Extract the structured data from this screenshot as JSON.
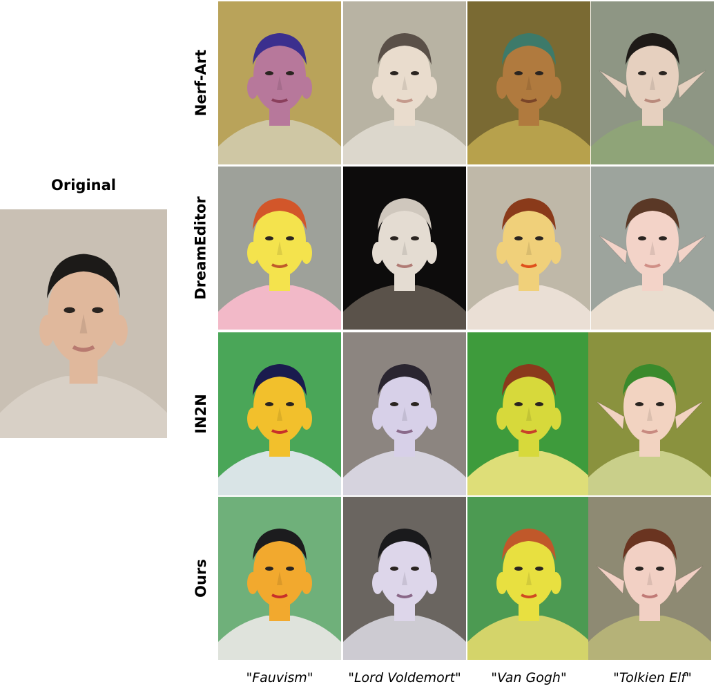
{
  "original_title": "Original",
  "row_labels": [
    "Nerf-Art",
    "DreamEditor",
    "IN2N",
    "Ours"
  ],
  "captions": [
    "\"Fauvism\"",
    "\"Lord Voldemort\"",
    "\"Van Gogh\"",
    "\"Tolkien Elf\""
  ],
  "palette": {
    "original": {
      "bg": "#c9c0b4",
      "skin": "#e0b89c",
      "hair": "#1c1a18",
      "shirt": "#d8d0c6",
      "lip": "#b87a70"
    },
    "nerfart": [
      {
        "bg": "#b9a35a",
        "skin": "#b7789b",
        "hair": "#3b2f8e",
        "shirt": "#cfc7a4",
        "lip": "#8a3f5c"
      },
      {
        "bg": "#b8b3a3",
        "skin": "#e9dccd",
        "hair": "#5a5048",
        "shirt": "#dcd7cc",
        "lip": "#c49a8c"
      },
      {
        "bg": "#7a6a33",
        "skin": "#b07a3e",
        "hair": "#3d7a6a",
        "shirt": "#b7a14c",
        "lip": "#7a4528"
      },
      {
        "bg": "#8e9684",
        "skin": "#e6d0bf",
        "hair": "#1e1a17",
        "shirt": "#8fa478",
        "lip": "#b98a7c"
      }
    ],
    "dreameditor": [
      {
        "bg": "#9ea19a",
        "skin": "#f4e34d",
        "hair": "#d2562a",
        "shirt": "#f2b9c8",
        "lip": "#c05a2a"
      },
      {
        "bg": "#0d0c0c",
        "skin": "#e4dcd2",
        "hair": "#cfc7bd",
        "shirt": "#5a524a",
        "lip": "#b07b74"
      },
      {
        "bg": "#bfb8a8",
        "skin": "#f0d07a",
        "hair": "#8a3a1a",
        "shirt": "#eadfd5",
        "lip": "#e0501c"
      },
      {
        "bg": "#9da49d",
        "skin": "#f3d3c8",
        "hair": "#5a3826",
        "shirt": "#e9ddcf",
        "lip": "#d08f86"
      }
    ],
    "in2n": [
      {
        "bg": "#4aa658",
        "skin": "#f2c02c",
        "hair": "#1a1b4e",
        "shirt": "#d9e4e6",
        "lip": "#c8302a"
      },
      {
        "bg": "#8c8580",
        "skin": "#d7d0e8",
        "hair": "#2a2530",
        "shirt": "#d6d3de",
        "lip": "#8a6a8a"
      },
      {
        "bg": "#3e9b3c",
        "skin": "#d7d93b",
        "hair": "#8a3a1c",
        "shirt": "#dede78",
        "lip": "#c8402a"
      },
      {
        "bg": "#8a923e",
        "skin": "#f2d3c1",
        "hair": "#3a8a2c",
        "shirt": "#c9cf8a",
        "lip": "#c88a80"
      }
    ],
    "ours": [
      {
        "bg": "#6fb07a",
        "skin": "#f2a92e",
        "hair": "#1c1c1e",
        "shirt": "#dfe3dc",
        "lip": "#c8302a"
      },
      {
        "bg": "#6a6560",
        "skin": "#ddd6ea",
        "hair": "#1a1a1c",
        "shirt": "#cdcbd2",
        "lip": "#8a6888"
      },
      {
        "bg": "#4c9a52",
        "skin": "#e8e040",
        "hair": "#c0582a",
        "shirt": "#d4d46a",
        "lip": "#d04a22"
      },
      {
        "bg": "#8e8a73",
        "skin": "#f2d0c4",
        "hair": "#6a3420",
        "shirt": "#b5b278",
        "lip": "#c07a76"
      }
    ]
  }
}
